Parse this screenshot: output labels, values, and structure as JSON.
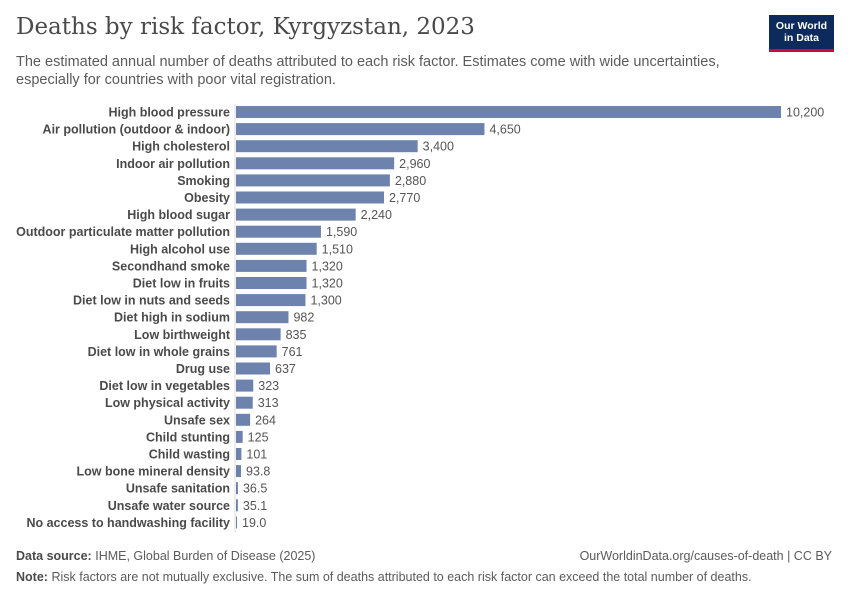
{
  "header": {
    "title": "Deaths by risk factor, Kyrgyzstan, 2023",
    "subtitle": "The estimated annual number of deaths attributed to each risk factor. Estimates come with wide uncertainties, especially for countries with poor vital registration.",
    "logo_line1": "Our World",
    "logo_line2": "in Data"
  },
  "chart_data": {
    "type": "bar",
    "orientation": "horizontal",
    "title": "Deaths by risk factor, Kyrgyzstan, 2023",
    "bar_color": "#6d82ad",
    "categories": [
      "High blood pressure",
      "Air pollution (outdoor & indoor)",
      "High cholesterol",
      "Indoor air pollution",
      "Smoking",
      "Obesity",
      "High blood sugar",
      "Outdoor particulate matter pollution",
      "High alcohol use",
      "Secondhand smoke",
      "Diet low in fruits",
      "Diet low in nuts and seeds",
      "Diet high in sodium",
      "Low birthweight",
      "Diet low in whole grains",
      "Drug use",
      "Diet low in vegetables",
      "Low physical activity",
      "Unsafe sex",
      "Child stunting",
      "Child wasting",
      "Low bone mineral density",
      "Unsafe sanitation",
      "Unsafe water source",
      "No access to handwashing facility"
    ],
    "values": [
      10200,
      4650,
      3400,
      2960,
      2880,
      2770,
      2240,
      1590,
      1510,
      1320,
      1320,
      1300,
      982,
      835,
      761,
      637,
      323,
      313,
      264,
      125,
      101,
      93.8,
      36.5,
      35.1,
      19.0
    ],
    "value_labels": [
      "10,200",
      "4,650",
      "3,400",
      "2,960",
      "2,880",
      "2,770",
      "2,240",
      "1,590",
      "1,510",
      "1,320",
      "1,320",
      "1,300",
      "982",
      "835",
      "761",
      "637",
      "323",
      "313",
      "264",
      "125",
      "101",
      "93.8",
      "36.5",
      "35.1",
      "19.0"
    ],
    "xlim": [
      0,
      10200
    ]
  },
  "footer": {
    "source_label": "Data source:",
    "source_text": "IHME, Global Burden of Disease (2025)",
    "url_text": "OurWorldinData.org/causes-of-death | CC BY",
    "note_label": "Note:",
    "note_text": "Risk factors are not mutually exclusive. The sum of deaths attributed to each risk factor can exceed the total number of deaths."
  }
}
